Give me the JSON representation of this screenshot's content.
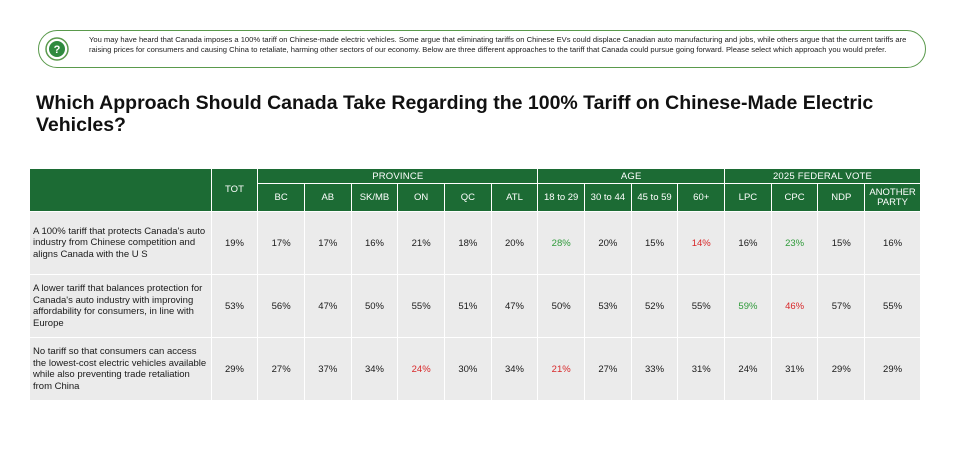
{
  "note": {
    "icon": "question-icon",
    "text": "You may have heard that Canada imposes a 100% tariff on Chinese-made electric vehicles. Some argue that eliminating tariffs on Chinese EVs could displace Canadian auto manufacturing and jobs, while others argue that the current tariffs are raising prices for consumers and causing China to retaliate, harming other sectors of our economy. Below are three different approaches to the tariff that Canada could pursue going forward. Please select which approach you would prefer."
  },
  "title": "Which Approach Should Canada Take Regarding the 100% Tariff on Chinese-Made Electric Vehicles?",
  "table": {
    "groups": {
      "tot": "TOT",
      "province": "PROVINCE",
      "age": "AGE",
      "vote": "2025 FEDERAL VOTE"
    },
    "columns": [
      "BC",
      "AB",
      "SK/MB",
      "ON",
      "QC",
      "ATL",
      "18 to 29",
      "30 to 44",
      "45 to 59",
      "60+",
      "LPC",
      "CPC",
      "NDP",
      "ANOTHER PARTY"
    ],
    "rows": [
      {
        "label": "A 100% tariff that protects Canada's auto industry from Chinese competition and aligns Canada with the U S",
        "values": [
          "19%",
          "17%",
          "17%",
          "16%",
          "21%",
          "18%",
          "20%",
          "28%",
          "20%",
          "15%",
          "14%",
          "16%",
          "23%",
          "15%",
          "16%"
        ],
        "highlight": [
          "",
          "",
          "",
          "",
          "",
          "",
          "",
          "green",
          "",
          "",
          "red",
          "",
          "green",
          "",
          ""
        ]
      },
      {
        "label": "A lower tariff that balances protection for Canada's auto industry with improving affordability for consumers, in line with Europe",
        "values": [
          "53%",
          "56%",
          "47%",
          "50%",
          "55%",
          "51%",
          "47%",
          "50%",
          "53%",
          "52%",
          "55%",
          "59%",
          "46%",
          "57%",
          "55%"
        ],
        "highlight": [
          "",
          "",
          "",
          "",
          "",
          "",
          "",
          "",
          "",
          "",
          "",
          "green",
          "red",
          "",
          ""
        ]
      },
      {
        "label": "No tariff so that consumers can access the lowest-cost electric vehicles available while also preventing trade retaliation from China",
        "values": [
          "29%",
          "27%",
          "37%",
          "34%",
          "24%",
          "30%",
          "34%",
          "21%",
          "27%",
          "33%",
          "31%",
          "24%",
          "31%",
          "29%",
          "29%"
        ],
        "highlight": [
          "",
          "",
          "",
          "",
          "red",
          "",
          "",
          "red",
          "",
          "",
          "",
          "",
          "",
          "",
          ""
        ]
      }
    ]
  },
  "colors": {
    "header_green": "#1c6b34",
    "cell_gray": "#ebebeb",
    "positive": "#2f9a3a",
    "negative": "#d8282a",
    "note_border": "#5a9a4c"
  }
}
